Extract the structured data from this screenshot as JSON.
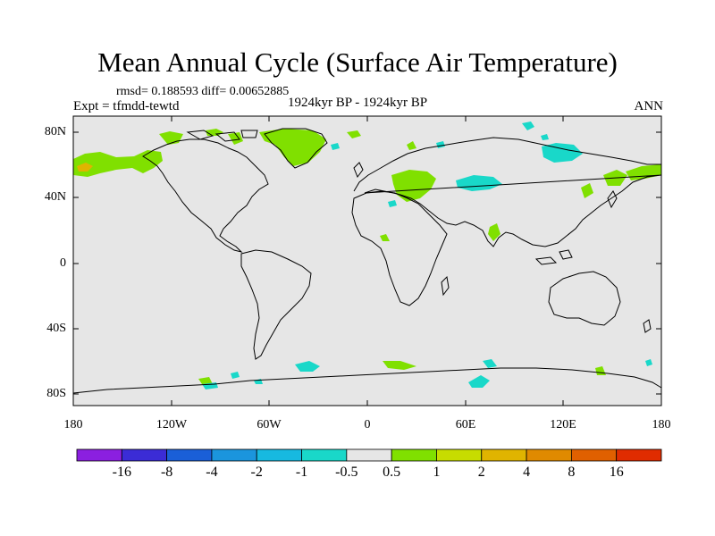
{
  "map": {
    "title": "Mean Annual Cycle (Surface Air Temperature)",
    "stats_line": "rmsd= 0.188593 diff= 0.00652885",
    "experiment_label": "Expt = tfmdd-tewtd",
    "period_label": "1924kyr BP - 1924kyr BP",
    "season_label": "ANN",
    "lat_ticks": [
      "80N",
      "40N",
      "0",
      "40S",
      "80S"
    ],
    "lon_ticks": [
      "180",
      "120W",
      "60W",
      "0",
      "60E",
      "120E",
      "180"
    ],
    "background_color": "#e6e6e6"
  },
  "colorbar": {
    "colors": [
      "#8b1fe0",
      "#3b2cd6",
      "#1a5fd8",
      "#1b95dd",
      "#17b9e0",
      "#19d8c9",
      "#e6e6e6",
      "#80e000",
      "#c7dc00",
      "#e0b400",
      "#e08a00",
      "#e06000",
      "#e02c00"
    ],
    "labels": [
      "-16",
      "-8",
      "-4",
      "-2",
      "-1",
      "-0.5",
      "0.5",
      "1",
      "2",
      "4",
      "8",
      "16"
    ]
  },
  "anomaly_colors": {
    "positive": "#80e000",
    "negative": "#19d8c9",
    "strong_positive": "#e0b400"
  }
}
